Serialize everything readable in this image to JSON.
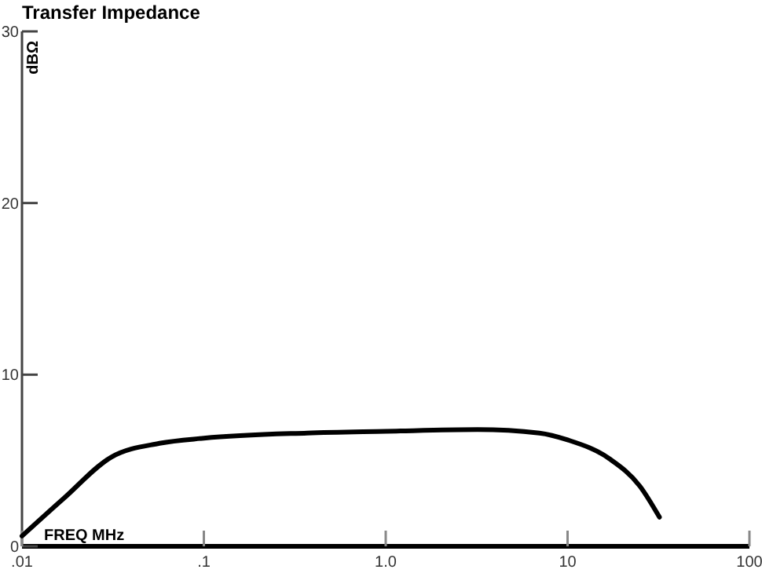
{
  "chart_data": {
    "type": "line",
    "title": "Transfer Impedance",
    "xlabel": "FREQ MHz",
    "ylabel": "dBΩ",
    "log": "x",
    "grid": false,
    "marker": "none",
    "line_style": "solid",
    "xlim": [
      0.01,
      100
    ],
    "xticks": [
      {
        "value": 0.01,
        "label": ".01"
      },
      {
        "value": 0.1,
        "label": ".1"
      },
      {
        "value": 1,
        "label": "1.0"
      },
      10,
      100
    ],
    "ylim": [
      0,
      30
    ],
    "yticks": [
      0,
      10,
      20,
      30
    ],
    "series": [
      {
        "color": "#000000",
        "x": [
          0.01,
          0.017,
          0.031,
          0.057,
          0.1,
          0.37,
          1,
          3.2,
          7,
          10,
          17,
          25,
          32
        ],
        "values": [
          0.6,
          2.8,
          5.2,
          6.0,
          6.3,
          6.6,
          6.7,
          6.8,
          6.6,
          6.2,
          5.1,
          3.5,
          1.7
        ]
      }
    ]
  }
}
